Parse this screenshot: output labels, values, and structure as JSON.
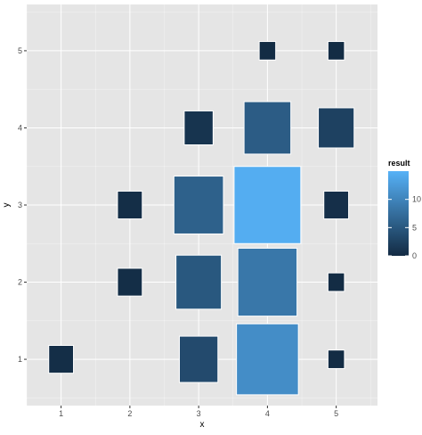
{
  "chart_data": {
    "type": "heatmap",
    "title": "",
    "xlabel": "x",
    "ylabel": "y",
    "x_ticks": [
      1,
      2,
      3,
      4,
      5
    ],
    "y_ticks": [
      1,
      2,
      3,
      4,
      5
    ],
    "xlim": [
      0.5,
      5.6
    ],
    "ylim": [
      0.4,
      5.6
    ],
    "grid": true,
    "background": "#e5e5e5",
    "grid_color": "#ffffff",
    "tile_outline_color": "#ffffff",
    "color_scale": {
      "low": "#132b43",
      "high": "#56b1f7",
      "min": 0,
      "max": 15
    },
    "points": [
      {
        "x": 1,
        "y": 1,
        "result": 0.3,
        "w": 0.36,
        "h": 0.36
      },
      {
        "x": 2,
        "y": 2,
        "result": 0.3,
        "w": 0.36,
        "h": 0.36
      },
      {
        "x": 2,
        "y": 3,
        "result": 0.3,
        "w": 0.36,
        "h": 0.36
      },
      {
        "x": 3,
        "y": 1,
        "result": 3.5,
        "w": 0.56,
        "h": 0.6
      },
      {
        "x": 3,
        "y": 2,
        "result": 5.0,
        "w": 0.66,
        "h": 0.7
      },
      {
        "x": 3,
        "y": 3,
        "result": 6.0,
        "w": 0.72,
        "h": 0.75
      },
      {
        "x": 3,
        "y": 4,
        "result": 1.0,
        "w": 0.42,
        "h": 0.44
      },
      {
        "x": 4,
        "y": 1,
        "result": 11.0,
        "w": 0.9,
        "h": 0.92
      },
      {
        "x": 4,
        "y": 2,
        "result": 8.5,
        "w": 0.86,
        "h": 0.88
      },
      {
        "x": 4,
        "y": 3,
        "result": 14.5,
        "w": 0.97,
        "h": 1.0
      },
      {
        "x": 4,
        "y": 4,
        "result": 5.5,
        "w": 0.68,
        "h": 0.68
      },
      {
        "x": 4,
        "y": 5,
        "result": 0.1,
        "w": 0.24,
        "h": 0.24
      },
      {
        "x": 5,
        "y": 1,
        "result": 0.1,
        "w": 0.24,
        "h": 0.24
      },
      {
        "x": 5,
        "y": 2,
        "result": 0.1,
        "w": 0.24,
        "h": 0.24
      },
      {
        "x": 5,
        "y": 3,
        "result": 0.5,
        "w": 0.36,
        "h": 0.36
      },
      {
        "x": 5,
        "y": 4,
        "result": 2.5,
        "w": 0.52,
        "h": 0.52
      },
      {
        "x": 5,
        "y": 5,
        "result": 0.1,
        "w": 0.24,
        "h": 0.24
      }
    ],
    "legend": {
      "title": "result",
      "position": "right",
      "breaks": [
        0,
        5,
        10
      ],
      "labels": [
        "0",
        "5",
        "10"
      ]
    }
  }
}
